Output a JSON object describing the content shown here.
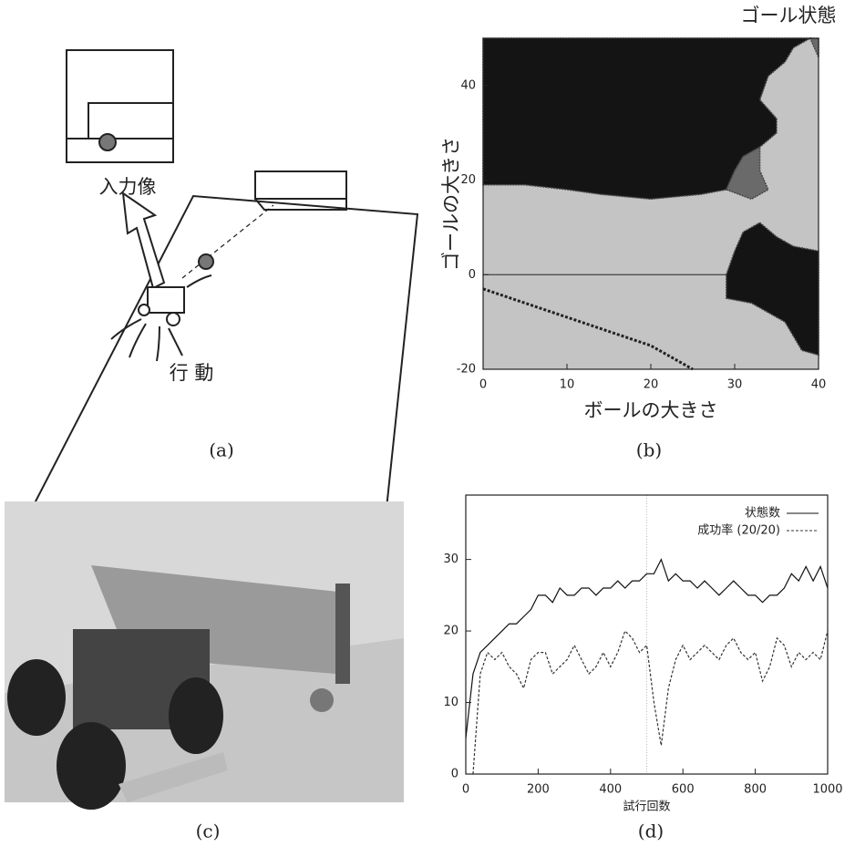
{
  "figure": {
    "captions": [
      "(a)",
      "(b)",
      "(c)",
      "(d)"
    ],
    "diagram": {
      "input_label": "入力像",
      "action_label": "行 動"
    }
  },
  "chart_data": [
    {
      "type": "region",
      "title": "ゴール状態",
      "xlabel": "ボールの大きさ",
      "ylabel": "ゴールの大きさ",
      "xlim": [
        0,
        40
      ],
      "ylim": [
        -20,
        50
      ],
      "xticks": [
        0,
        10,
        20,
        30,
        40
      ],
      "yticks": [
        -20,
        0,
        20,
        40
      ],
      "background": "#c4c4c4",
      "regions": [
        {
          "color": "#141414",
          "points": [
            [
              0,
              50
            ],
            [
              39,
              50
            ],
            [
              37,
              48
            ],
            [
              36,
              45
            ],
            [
              34,
              42
            ],
            [
              33,
              37
            ],
            [
              35,
              33
            ],
            [
              35,
              30
            ],
            [
              33,
              27
            ],
            [
              31,
              25
            ],
            [
              30,
              22
            ],
            [
              29,
              18
            ],
            [
              26,
              17
            ],
            [
              20,
              16
            ],
            [
              14,
              17
            ],
            [
              10,
              18
            ],
            [
              5,
              19
            ],
            [
              0,
              19
            ]
          ]
        },
        {
          "color": "#6a6a6a",
          "points": [
            [
              29,
              18
            ],
            [
              30,
              22
            ],
            [
              31,
              25
            ],
            [
              33,
              27
            ],
            [
              33,
              22
            ],
            [
              34,
              18
            ],
            [
              32,
              16
            ]
          ]
        },
        {
          "color": "#141414",
          "points": [
            [
              33,
              11
            ],
            [
              35,
              8
            ],
            [
              37,
              6
            ],
            [
              40,
              5
            ],
            [
              40,
              -17
            ],
            [
              38,
              -16
            ],
            [
              36,
              -10
            ],
            [
              32,
              -6
            ],
            [
              29,
              -5
            ],
            [
              29,
              0
            ],
            [
              30,
              5
            ],
            [
              31,
              9
            ]
          ]
        },
        {
          "color": "#6a6a6a",
          "points": [
            [
              39,
              50
            ],
            [
              40,
              50
            ],
            [
              40,
              46
            ]
          ]
        }
      ],
      "boundary": [
        [
          0,
          -3
        ],
        [
          5,
          -6
        ],
        [
          10,
          -9
        ],
        [
          15,
          -12
        ],
        [
          20,
          -15
        ],
        [
          25,
          -20
        ]
      ]
    },
    {
      "type": "line",
      "xlabel": "試行回数",
      "xlim": [
        0,
        1000
      ],
      "ylim": [
        0,
        39
      ],
      "xticks": [
        0,
        200,
        400,
        600,
        800,
        1000
      ],
      "yticks": [
        0,
        10,
        20,
        30
      ],
      "x": [
        0,
        20,
        40,
        60,
        80,
        100,
        120,
        140,
        160,
        180,
        200,
        220,
        240,
        260,
        280,
        300,
        320,
        340,
        360,
        380,
        400,
        420,
        440,
        460,
        480,
        500,
        520,
        540,
        560,
        580,
        600,
        620,
        640,
        660,
        680,
        700,
        720,
        740,
        760,
        780,
        800,
        820,
        840,
        860,
        880,
        900,
        920,
        940,
        960,
        980,
        1000
      ],
      "series": [
        {
          "name": "状態数",
          "color": "#111",
          "dash": "none",
          "values": [
            5,
            14,
            17,
            18,
            19,
            20,
            21,
            21,
            22,
            23,
            25,
            25,
            24,
            26,
            25,
            25,
            26,
            26,
            25,
            26,
            26,
            27,
            26,
            27,
            27,
            28,
            28,
            30,
            27,
            28,
            27,
            27,
            26,
            27,
            26,
            25,
            26,
            27,
            26,
            25,
            25,
            24,
            25,
            25,
            26,
            28,
            27,
            29,
            27,
            29,
            26
          ]
        },
        {
          "name": "成功率 (20/20)",
          "color": "#333",
          "dash": "3 2",
          "values": [
            null,
            0,
            14,
            17,
            16,
            17,
            15,
            14,
            12,
            16,
            17,
            17,
            14,
            15,
            16,
            18,
            16,
            14,
            15,
            17,
            15,
            17,
            20,
            19,
            17,
            18,
            10,
            4,
            12,
            16,
            18,
            16,
            17,
            18,
            17,
            16,
            18,
            19,
            17,
            16,
            17,
            13,
            15,
            19,
            18,
            15,
            17,
            16,
            17,
            16,
            20
          ]
        }
      ]
    }
  ]
}
